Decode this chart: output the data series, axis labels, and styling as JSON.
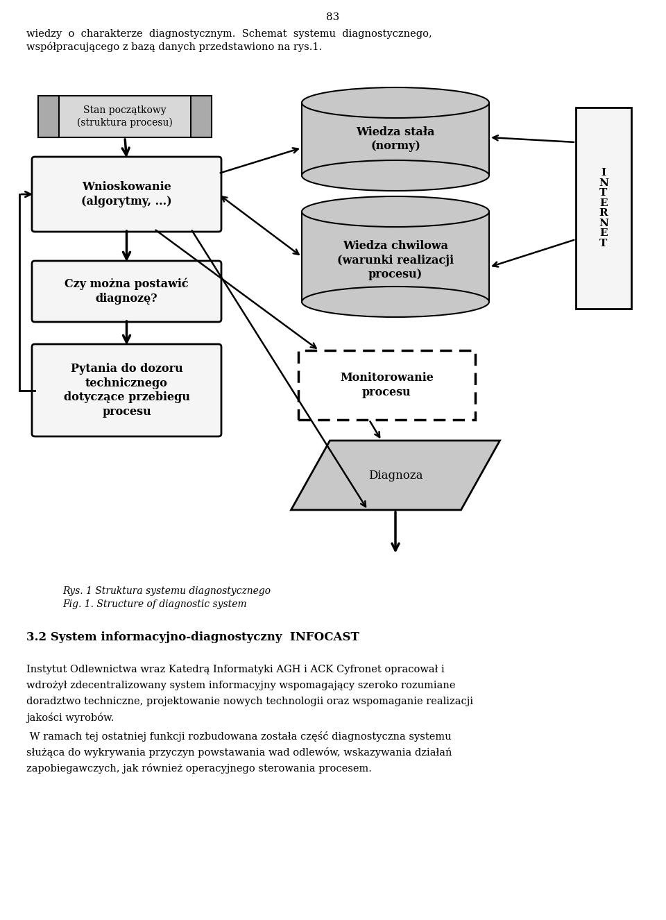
{
  "page_number": "83",
  "bg_color": "#ffffff",
  "intro_line1": "wiedzy  o  charakterze  diagnostycznym.  Schemat  systemu  diagnostycznego,",
  "intro_line2": "współpracującego z bazą danych przedstawiono na rys.1.",
  "caption_line1": "Rys. 1 Struktura systemu diagnostycznego",
  "caption_line2": "Fig. 1. Structure of diagnostic system",
  "section_heading": "3.2 System informacyjno-diagnostyczny  INFOCAST",
  "para1_lines": [
    "Instytut Odlewnictwa wraz Katedrą Informatyki AGH i ACK Cyfronet opracował i",
    "wdrożył zdecentralizowany system informacyjny wspomagający szeroko rozumiane",
    "doradztwo techniczne, projektowanie nowych technologii oraz wspomaganie realizacji",
    "jakości wyrobów."
  ],
  "para2_lines": [
    " W ramach tej ostatniej funkcji rozbudowana została część diagnostyczna systemu",
    "służąca do wykrywania przyczyn powstawania wad odlewów, wskazywania działań",
    "zapobiegawczych, jak również operacyjnego sterowania procesem."
  ]
}
